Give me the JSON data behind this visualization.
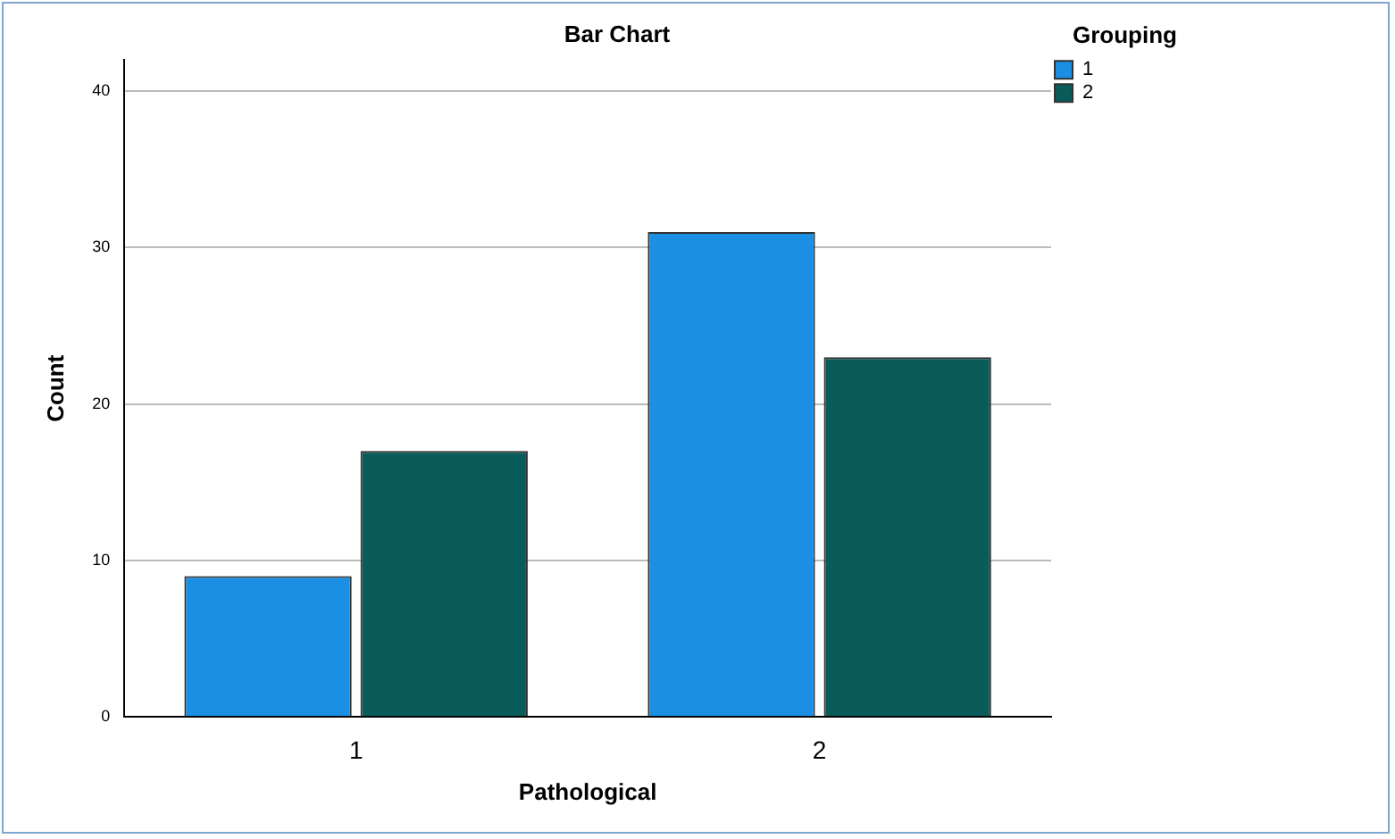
{
  "chart_data": {
    "type": "bar",
    "title": "Bar Chart",
    "xlabel": "Pathological",
    "ylabel": "Count",
    "legend_title": "Grouping",
    "categories": [
      "1",
      "2"
    ],
    "series": [
      {
        "name": "1",
        "color": "#1a8fe3",
        "values": [
          9,
          31
        ]
      },
      {
        "name": "2",
        "color": "#0a5c5a",
        "values": [
          17,
          23
        ]
      }
    ],
    "ylim": [
      0,
      42
    ],
    "yticks": [
      0,
      10,
      20,
      30,
      40
    ],
    "grid": "y",
    "legend": "top right"
  }
}
